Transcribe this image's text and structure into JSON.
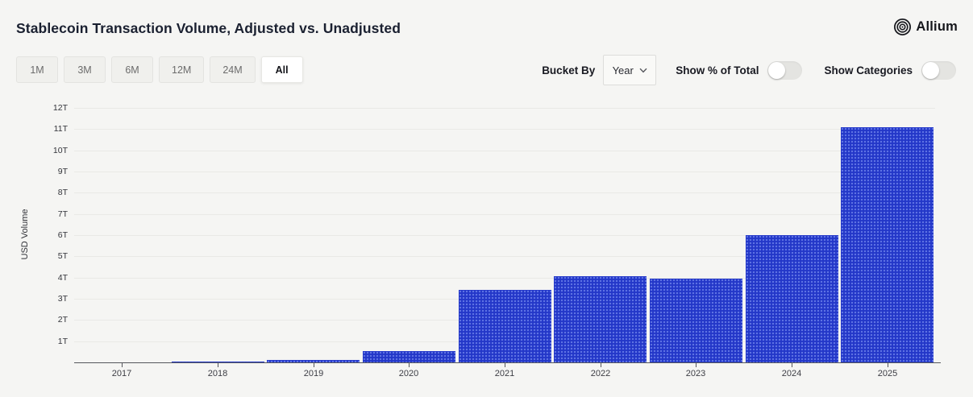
{
  "header": {
    "title": "Stablecoin Transaction Volume, Adjusted vs. Unadjusted",
    "brand": "Allium"
  },
  "toolbar": {
    "range_buttons": [
      {
        "label": "1M",
        "active": false
      },
      {
        "label": "3M",
        "active": false
      },
      {
        "label": "6M",
        "active": false
      },
      {
        "label": "12M",
        "active": false
      },
      {
        "label": "24M",
        "active": false
      },
      {
        "label": "All",
        "active": true
      }
    ],
    "bucket_by_label": "Bucket By",
    "bucket_by_value": "Year",
    "toggles": [
      {
        "label": "Show % of Total",
        "on": false
      },
      {
        "label": "Show Categories",
        "on": false
      }
    ]
  },
  "chart_data": {
    "type": "bar",
    "title": "Stablecoin Transaction Volume, Adjusted vs. Unadjusted",
    "xlabel": "",
    "ylabel": "USD Volume",
    "categories": [
      "2017",
      "2018",
      "2019",
      "2020",
      "2021",
      "2022",
      "2023",
      "2024",
      "2025"
    ],
    "values": [
      0.01,
      0.04,
      0.12,
      0.55,
      3.4,
      4.05,
      3.95,
      6.0,
      11.1
    ],
    "unit": "trillion USD",
    "ylim": [
      0,
      12
    ],
    "ytick_step": 1,
    "ytick_suffix": "T",
    "grid": true,
    "legend_position": "none",
    "bar_color": "#2337c8",
    "bar_pattern_dot_color": "#5e72e3",
    "background_color": "#f5f5f3"
  }
}
